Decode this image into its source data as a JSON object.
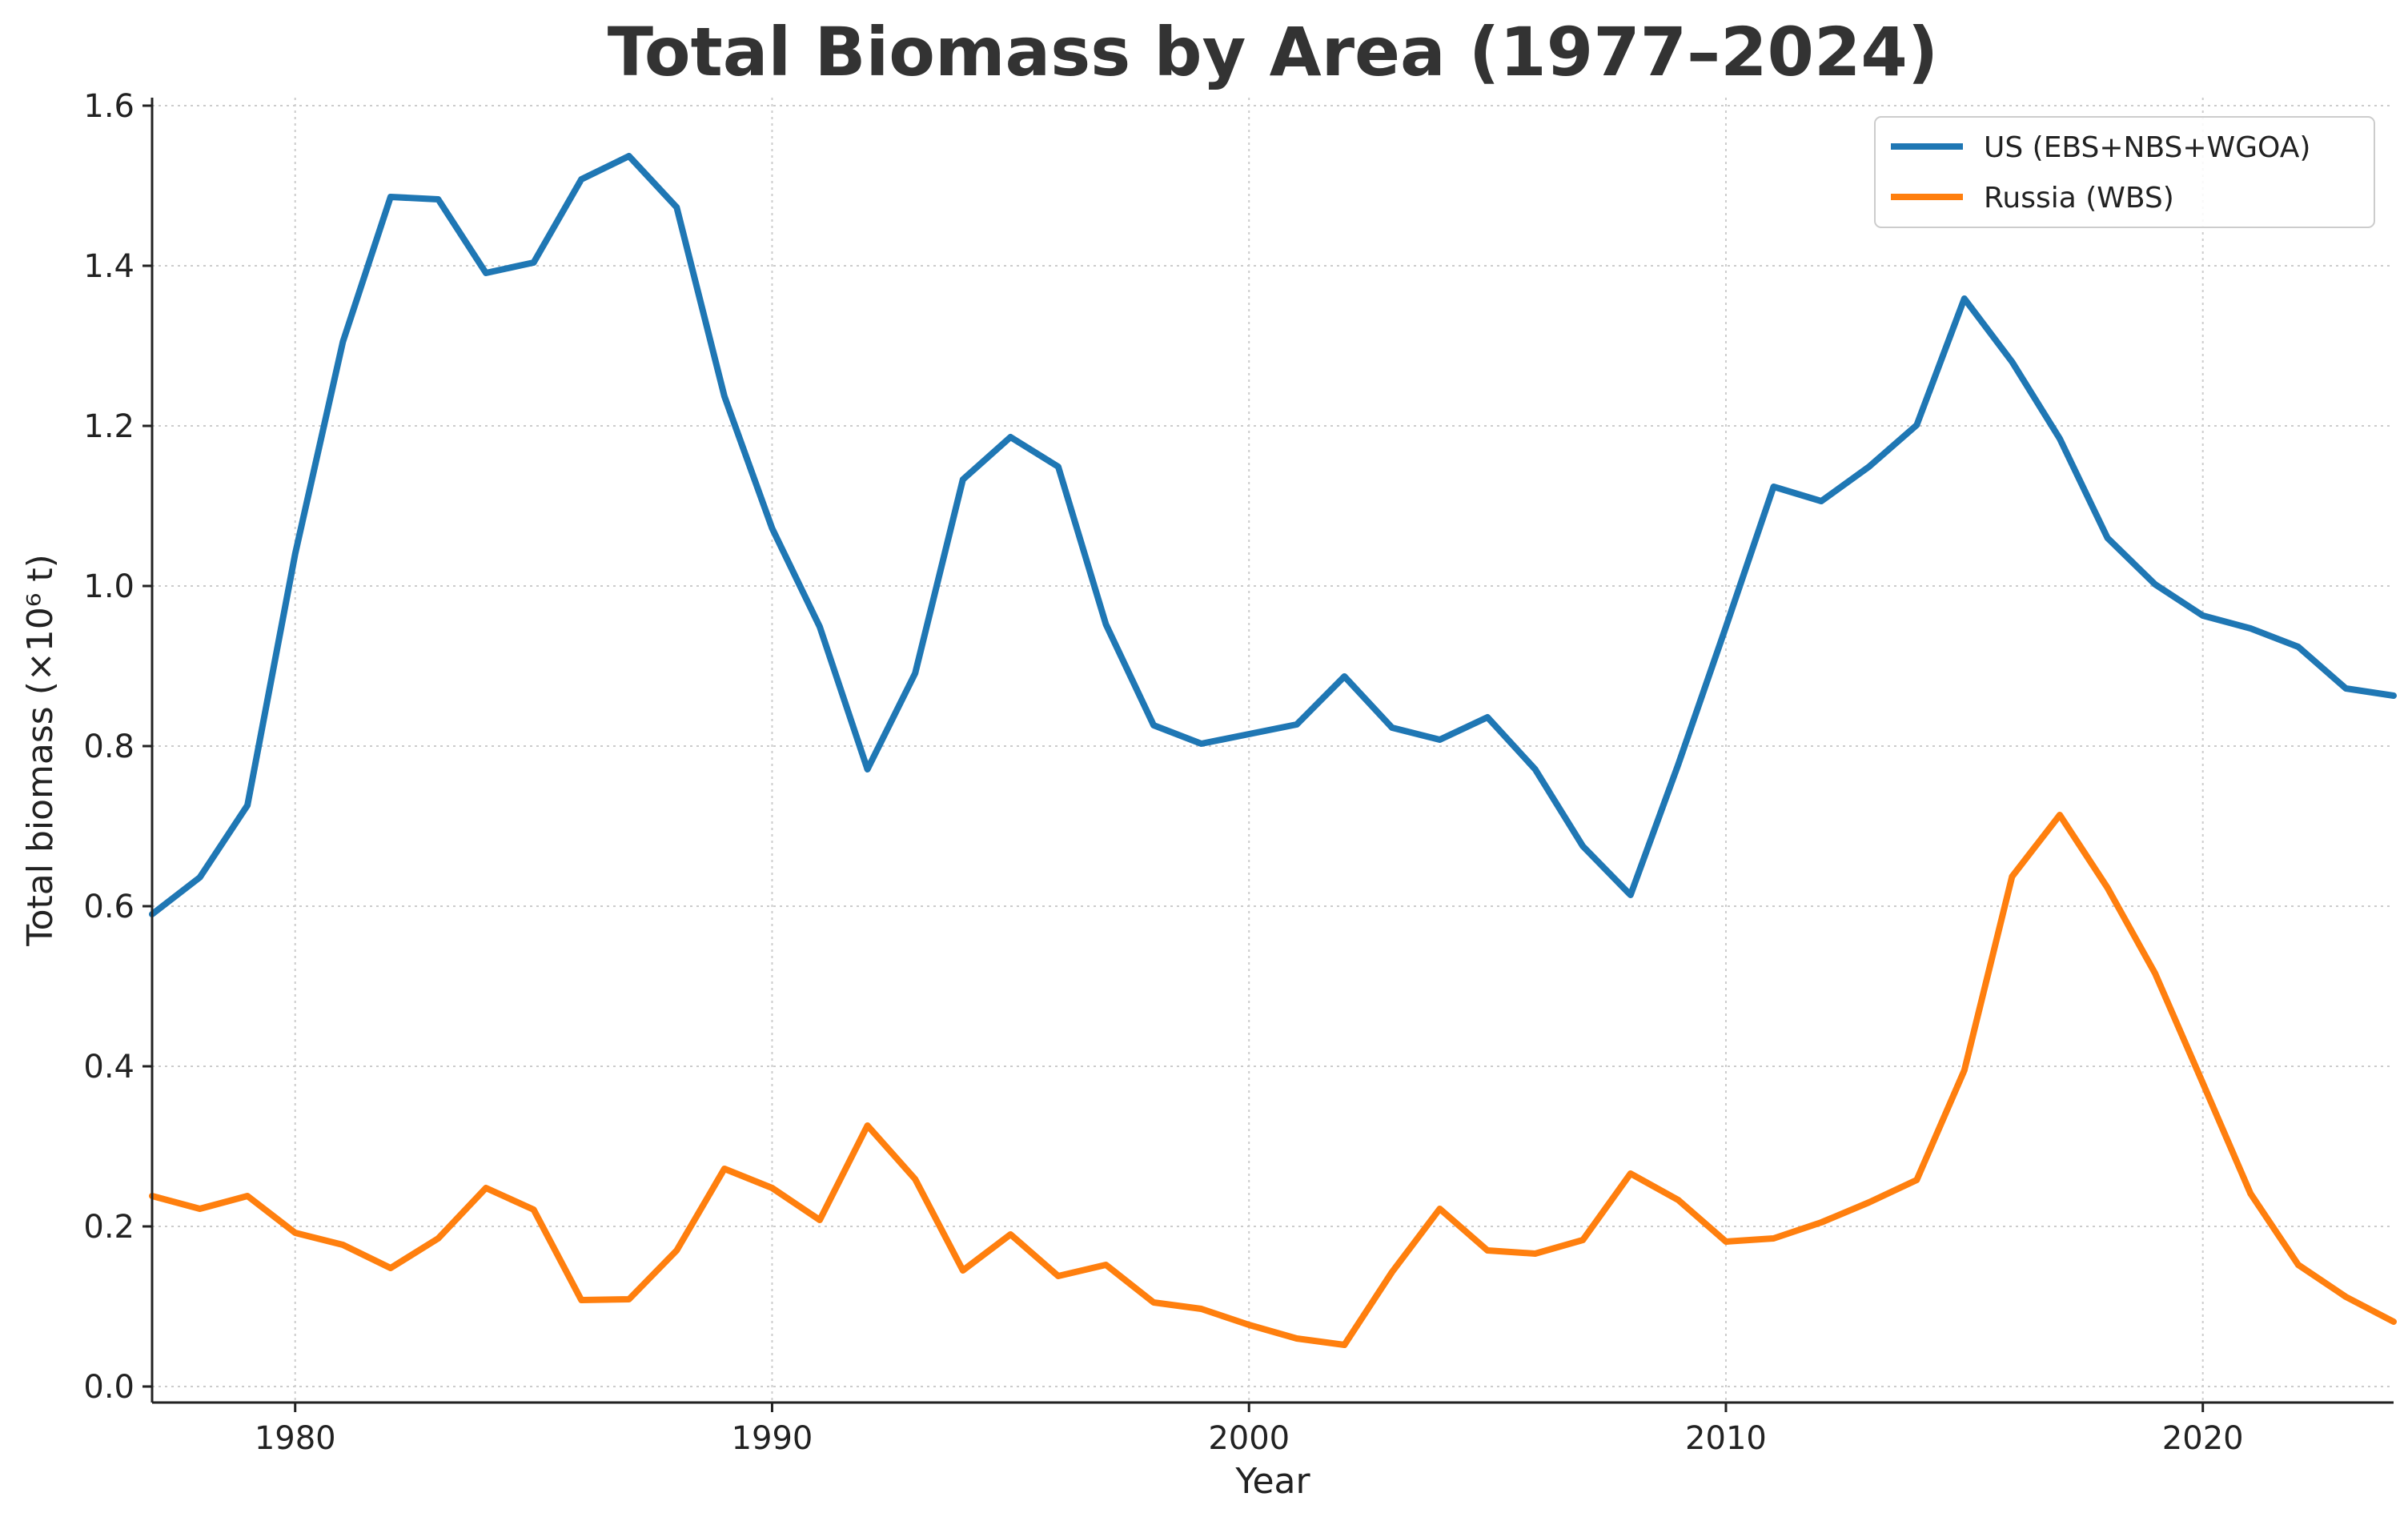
{
  "chart_data": {
    "type": "line",
    "title": "Total Biomass by Area (1977–2024)",
    "xlabel": "Year",
    "ylabel": "Total biomass (×10⁶ t)",
    "xlim": [
      1977,
      2024
    ],
    "ylim": [
      -0.02,
      1.61
    ],
    "x_ticks": [
      1980,
      1990,
      2000,
      2010,
      2020
    ],
    "y_ticks": [
      0.0,
      0.2,
      0.4,
      0.6,
      0.8,
      1.0,
      1.2,
      1.4,
      1.6
    ],
    "x_tick_labels": [
      "1980",
      "1990",
      "2000",
      "2010",
      "2020"
    ],
    "y_tick_labels": [
      "0.0",
      "0.2",
      "0.4",
      "0.6",
      "0.8",
      "1.0",
      "1.2",
      "1.4",
      "1.6"
    ],
    "grid": true,
    "legend_position": "top-right",
    "x": [
      1977,
      1978,
      1979,
      1980,
      1981,
      1982,
      1983,
      1984,
      1985,
      1986,
      1987,
      1988,
      1989,
      1990,
      1991,
      1992,
      1993,
      1994,
      1995,
      1996,
      1997,
      1998,
      1999,
      2000,
      2001,
      2002,
      2003,
      2004,
      2005,
      2006,
      2007,
      2008,
      2009,
      2010,
      2011,
      2012,
      2013,
      2014,
      2015,
      2016,
      2017,
      2018,
      2019,
      2020,
      2021,
      2022,
      2023,
      2024
    ],
    "series": [
      {
        "name": "US (EBS+NBS+WGOA)",
        "color": "#1f77b4",
        "values": [
          0.59,
          0.636,
          0.726,
          1.04,
          1.305,
          1.486,
          1.483,
          1.391,
          1.404,
          1.508,
          1.537,
          1.473,
          1.237,
          1.072,
          0.949,
          0.771,
          0.891,
          1.133,
          1.186,
          1.149,
          0.952,
          0.826,
          0.803,
          0.815,
          0.827,
          0.887,
          0.823,
          0.808,
          0.836,
          0.771,
          0.675,
          0.614,
          0.777,
          0.949,
          1.124,
          1.106,
          1.149,
          1.201,
          1.359,
          1.28,
          1.184,
          1.06,
          1.002,
          0.963,
          0.947,
          0.924,
          0.872,
          0.863
        ]
      },
      {
        "name": "Russia (WBS)",
        "color": "#ff7f0e",
        "values": [
          0.238,
          0.222,
          0.238,
          0.192,
          0.177,
          0.148,
          0.185,
          0.248,
          0.221,
          0.108,
          0.109,
          0.17,
          0.272,
          0.248,
          0.208,
          0.326,
          0.259,
          0.145,
          0.19,
          0.138,
          0.152,
          0.105,
          0.097,
          0.077,
          0.06,
          0.052,
          0.143,
          0.222,
          0.17,
          0.166,
          0.183,
          0.266,
          0.233,
          0.181,
          0.185,
          0.205,
          0.23,
          0.258,
          0.395,
          0.637,
          0.714,
          0.623,
          0.516,
          0.379,
          0.241,
          0.152,
          0.112,
          0.081
        ]
      }
    ]
  }
}
